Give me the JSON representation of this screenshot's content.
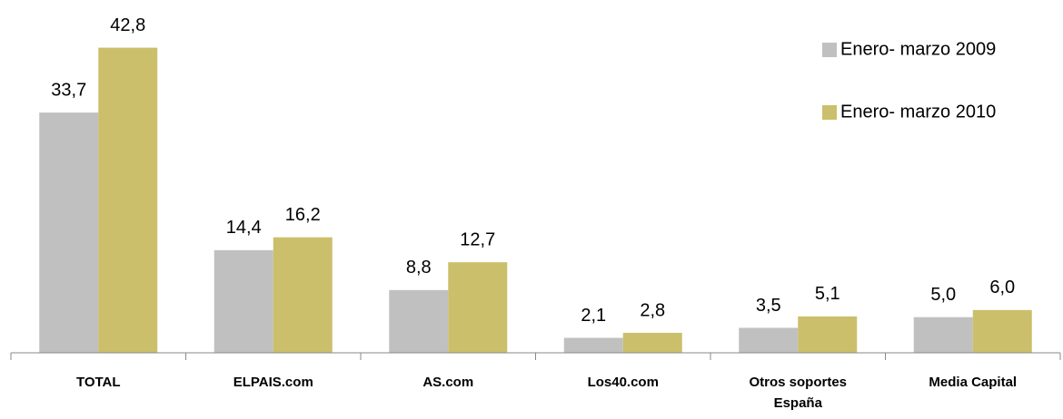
{
  "chart_data": {
    "type": "bar",
    "categories": [
      "TOTAL",
      "ELPAIS.com",
      "AS.com",
      "Los40.com",
      "Otros soportes España",
      "Media Capital"
    ],
    "series": [
      {
        "name": "Enero- marzo 2009",
        "color": "#c0c0c0",
        "values": [
          33.7,
          14.4,
          8.8,
          2.1,
          3.5,
          5.0
        ],
        "value_labels": [
          "33,7",
          "14,4",
          "8,8",
          "2,1",
          "3,5",
          "5,0"
        ]
      },
      {
        "name": "Enero- marzo 2010",
        "color": "#cbbf6b",
        "values": [
          42.8,
          16.2,
          12.7,
          2.8,
          5.1,
          6.0
        ],
        "value_labels": [
          "42,8",
          "16,2",
          "12,7",
          "2,8",
          "5,1",
          "6,0"
        ]
      }
    ],
    "legend": "upper right"
  }
}
